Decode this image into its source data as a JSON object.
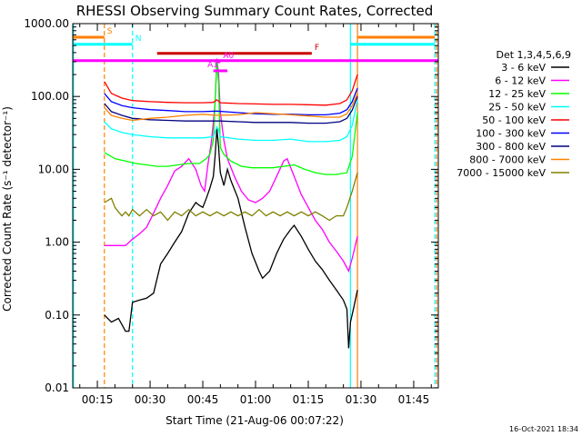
{
  "chart_data": {
    "type": "line",
    "title": "RHESSI Observing Summary Count Rates, Corrected",
    "xlabel": "Start Time (21-Aug-06 00:07:22)",
    "ylabel": "Corrected Count Rate (s⁻¹ detector⁻¹)",
    "footer": "16-Oct-2021 18:34",
    "y_scale": "log",
    "ylim": [
      0.01,
      1000
    ],
    "y_ticks": [
      "0.01",
      "0.10",
      "1.00",
      "10.00",
      "100.00",
      "1000.00"
    ],
    "xlim_minutes": [
      8,
      112
    ],
    "x_ticks": [
      "00:15",
      "00:30",
      "00:45",
      "01:00",
      "01:15",
      "01:30",
      "01:45"
    ],
    "legend_title": "Det 1,3,4,5,6,9",
    "series": [
      {
        "name": "3 - 6 keV",
        "color": "#000000",
        "points": [
          [
            17,
            0.1
          ],
          [
            19,
            0.08
          ],
          [
            21,
            0.09
          ],
          [
            23,
            0.06
          ],
          [
            24,
            0.06
          ],
          [
            25,
            0.15
          ],
          [
            27,
            0.16
          ],
          [
            29,
            0.17
          ],
          [
            31,
            0.2
          ],
          [
            33,
            0.5
          ],
          [
            35,
            0.7
          ],
          [
            37,
            1.0
          ],
          [
            39,
            1.4
          ],
          [
            41,
            2.5
          ],
          [
            43,
            3.5
          ],
          [
            44,
            3.2
          ],
          [
            45,
            3.0
          ],
          [
            46,
            4.0
          ],
          [
            47,
            5.5
          ],
          [
            48,
            8.0
          ],
          [
            48.5,
            15
          ],
          [
            49,
            36
          ],
          [
            49.5,
            20
          ],
          [
            50,
            9
          ],
          [
            51,
            6
          ],
          [
            52,
            10
          ],
          [
            53,
            7
          ],
          [
            55,
            4
          ],
          [
            57,
            1.6
          ],
          [
            59,
            0.7
          ],
          [
            61,
            0.4
          ],
          [
            62,
            0.32
          ],
          [
            64,
            0.4
          ],
          [
            66,
            0.7
          ],
          [
            68,
            1.1
          ],
          [
            70,
            1.5
          ],
          [
            71,
            1.7
          ],
          [
            73,
            1.2
          ],
          [
            75,
            0.8
          ],
          [
            77,
            0.55
          ],
          [
            79,
            0.42
          ],
          [
            81,
            0.3
          ],
          [
            83,
            0.22
          ],
          [
            85,
            0.16
          ],
          [
            86,
            0.12
          ],
          [
            86.5,
            0.035
          ],
          [
            87,
            0.08
          ],
          [
            88,
            0.13
          ],
          [
            89,
            0.22
          ]
        ]
      },
      {
        "name": "6 - 12 keV",
        "color": "#ff00ff",
        "points": [
          [
            17,
            0.9
          ],
          [
            20,
            0.9
          ],
          [
            23,
            0.9
          ],
          [
            25,
            1.1
          ],
          [
            27,
            1.3
          ],
          [
            29,
            1.6
          ],
          [
            31,
            2.5
          ],
          [
            33,
            4.0
          ],
          [
            35,
            6.0
          ],
          [
            37,
            9.5
          ],
          [
            39,
            11
          ],
          [
            41,
            14
          ],
          [
            43,
            10
          ],
          [
            44.5,
            6.0
          ],
          [
            45.5,
            5.0
          ],
          [
            46.5,
            12
          ],
          [
            47.5,
            25
          ],
          [
            48.5,
            80
          ],
          [
            49,
            330
          ],
          [
            49.5,
            200
          ],
          [
            50,
            60
          ],
          [
            51,
            25
          ],
          [
            52,
            14
          ],
          [
            54,
            8
          ],
          [
            56,
            5
          ],
          [
            58,
            3.8
          ],
          [
            60,
            3.5
          ],
          [
            62,
            4.0
          ],
          [
            64,
            5.0
          ],
          [
            66,
            8.0
          ],
          [
            68,
            13
          ],
          [
            69,
            14
          ],
          [
            71,
            8
          ],
          [
            73,
            4.5
          ],
          [
            75,
            3
          ],
          [
            77,
            2
          ],
          [
            79,
            1.5
          ],
          [
            81,
            1.0
          ],
          [
            83,
            0.75
          ],
          [
            85,
            0.55
          ],
          [
            86.5,
            0.4
          ],
          [
            87.5,
            0.6
          ],
          [
            89,
            1.2
          ]
        ]
      },
      {
        "name": "12 - 25 keV",
        "color": "#00ff00",
        "points": [
          [
            17,
            17
          ],
          [
            20,
            14
          ],
          [
            23,
            13
          ],
          [
            26,
            12
          ],
          [
            29,
            11.5
          ],
          [
            32,
            11
          ],
          [
            35,
            11
          ],
          [
            38,
            11.5
          ],
          [
            41,
            12
          ],
          [
            44,
            12
          ],
          [
            46,
            14
          ],
          [
            47,
            16
          ],
          [
            48,
            25
          ],
          [
            49,
            300
          ],
          [
            49.5,
            150
          ],
          [
            50,
            20
          ],
          [
            51,
            16
          ],
          [
            53,
            13
          ],
          [
            56,
            11
          ],
          [
            59,
            10.5
          ],
          [
            62,
            10.5
          ],
          [
            65,
            10.5
          ],
          [
            68,
            11
          ],
          [
            71,
            11.5
          ],
          [
            74,
            10
          ],
          [
            77,
            9
          ],
          [
            80,
            8.5
          ],
          [
            83,
            8.5
          ],
          [
            86,
            9
          ],
          [
            87.5,
            15
          ],
          [
            89,
            60
          ]
        ]
      },
      {
        "name": "25 - 50 keV",
        "color": "#00ffff",
        "points": [
          [
            17,
            45
          ],
          [
            19,
            36
          ],
          [
            22,
            32
          ],
          [
            25,
            30
          ],
          [
            30,
            28
          ],
          [
            35,
            27
          ],
          [
            40,
            27
          ],
          [
            45,
            27
          ],
          [
            48,
            28
          ],
          [
            49,
            38
          ],
          [
            49.5,
            35
          ],
          [
            50,
            28
          ],
          [
            55,
            26
          ],
          [
            60,
            25
          ],
          [
            65,
            25
          ],
          [
            70,
            26
          ],
          [
            75,
            24
          ],
          [
            80,
            24
          ],
          [
            84,
            25
          ],
          [
            86,
            28
          ],
          [
            87.5,
            40
          ],
          [
            89,
            90
          ]
        ]
      },
      {
        "name": "50 - 100 keV",
        "color": "#ff0000",
        "points": [
          [
            17,
            160
          ],
          [
            19,
            110
          ],
          [
            22,
            95
          ],
          [
            25,
            88
          ],
          [
            30,
            85
          ],
          [
            35,
            83
          ],
          [
            40,
            82
          ],
          [
            45,
            82
          ],
          [
            48,
            83
          ],
          [
            49,
            90
          ],
          [
            50,
            82
          ],
          [
            55,
            80
          ],
          [
            60,
            79
          ],
          [
            65,
            78
          ],
          [
            70,
            78
          ],
          [
            75,
            77
          ],
          [
            80,
            76
          ],
          [
            84,
            80
          ],
          [
            86,
            90
          ],
          [
            87.5,
            120
          ],
          [
            89,
            200
          ]
        ]
      },
      {
        "name": "100 - 300 keV",
        "color": "#0000ff",
        "points": [
          [
            17,
            110
          ],
          [
            19,
            85
          ],
          [
            22,
            75
          ],
          [
            25,
            70
          ],
          [
            30,
            66
          ],
          [
            35,
            64
          ],
          [
            40,
            62
          ],
          [
            45,
            62
          ],
          [
            49,
            63
          ],
          [
            55,
            60
          ],
          [
            60,
            58
          ],
          [
            65,
            57
          ],
          [
            70,
            57
          ],
          [
            75,
            56
          ],
          [
            80,
            56
          ],
          [
            84,
            59
          ],
          [
            86,
            66
          ],
          [
            87.5,
            85
          ],
          [
            89,
            130
          ]
        ]
      },
      {
        "name": "300 - 800 keV",
        "color": "#000080",
        "points": [
          [
            17,
            80
          ],
          [
            19,
            62
          ],
          [
            22,
            55
          ],
          [
            25,
            50
          ],
          [
            30,
            48
          ],
          [
            35,
            47
          ],
          [
            40,
            46
          ],
          [
            45,
            46
          ],
          [
            50,
            46
          ],
          [
            55,
            45
          ],
          [
            60,
            44
          ],
          [
            65,
            44
          ],
          [
            70,
            44
          ],
          [
            75,
            43
          ],
          [
            80,
            43
          ],
          [
            84,
            45
          ],
          [
            86,
            50
          ],
          [
            87.5,
            65
          ],
          [
            89,
            100
          ]
        ]
      },
      {
        "name": "800 - 7000 keV",
        "color": "#ff8000",
        "points": [
          [
            17,
            70
          ],
          [
            19,
            55
          ],
          [
            22,
            50
          ],
          [
            25,
            47
          ],
          [
            30,
            50
          ],
          [
            35,
            52
          ],
          [
            40,
            55
          ],
          [
            45,
            57
          ],
          [
            49,
            55
          ],
          [
            55,
            56
          ],
          [
            60,
            60
          ],
          [
            65,
            58
          ],
          [
            70,
            56
          ],
          [
            75,
            54
          ],
          [
            80,
            52
          ],
          [
            84,
            52
          ],
          [
            86,
            58
          ],
          [
            87.5,
            75
          ],
          [
            89,
            110
          ]
        ]
      },
      {
        "name": "7000 - 15000 keV",
        "color": "#808000",
        "points": [
          [
            17,
            3.5
          ],
          [
            19,
            4.0
          ],
          [
            20,
            3.0
          ],
          [
            21,
            2.6
          ],
          [
            22,
            2.3
          ],
          [
            23,
            2.6
          ],
          [
            24,
            2.3
          ],
          [
            25,
            2.8
          ],
          [
            27,
            2.3
          ],
          [
            29,
            2.8
          ],
          [
            31,
            2.3
          ],
          [
            33,
            2.6
          ],
          [
            35,
            2.0
          ],
          [
            37,
            2.6
          ],
          [
            39,
            2.3
          ],
          [
            41,
            2.8
          ],
          [
            43,
            2.3
          ],
          [
            45,
            2.6
          ],
          [
            47,
            2.3
          ],
          [
            49,
            2.6
          ],
          [
            51,
            2.3
          ],
          [
            53,
            2.6
          ],
          [
            55,
            2.3
          ],
          [
            57,
            2.6
          ],
          [
            59,
            2.3
          ],
          [
            61,
            2.8
          ],
          [
            63,
            2.3
          ],
          [
            65,
            2.6
          ],
          [
            67,
            2.3
          ],
          [
            69,
            2.6
          ],
          [
            71,
            2.3
          ],
          [
            73,
            2.6
          ],
          [
            75,
            2.3
          ],
          [
            77,
            2.6
          ],
          [
            79,
            2.3
          ],
          [
            81,
            2.0
          ],
          [
            83,
            2.3
          ],
          [
            85,
            2.3
          ],
          [
            86,
            3.0
          ],
          [
            87.5,
            5.0
          ],
          [
            89,
            9.0
          ]
        ]
      }
    ],
    "flag_bars": [
      {
        "label": "S",
        "color": "#ff8000",
        "y": 650,
        "x_ranges": [
          [
            8,
            17
          ],
          [
            89,
            111
          ]
        ]
      },
      {
        "label": "N",
        "color": "#00ffff",
        "y": 520,
        "x_ranges": [
          [
            8,
            25
          ],
          [
            87,
            111
          ]
        ]
      },
      {
        "label": "F",
        "color": "#cc0000",
        "y": 390,
        "x_ranges": [
          [
            32,
            76
          ]
        ]
      },
      {
        "label": "",
        "color": "#ff00ff",
        "y": 310,
        "x_ranges": [
          [
            8,
            112
          ]
        ]
      },
      {
        "label": "A0",
        "color": "#ff00ff",
        "y": 300,
        "x_ranges": [
          [
            49,
            50
          ]
        ]
      },
      {
        "label": "A1",
        "color": "#ff00ff",
        "y": 225,
        "x_ranges": [
          [
            48,
            52
          ]
        ]
      }
    ],
    "vertical_markers": [
      {
        "x": 17,
        "color": "#ff8000",
        "style": "dashed"
      },
      {
        "x": 25,
        "color": "#00ffff",
        "style": "dashed"
      },
      {
        "x": 87,
        "color": "#00ffff",
        "style": "solid"
      },
      {
        "x": 89,
        "color": "#ff8000",
        "style": "solid"
      },
      {
        "x": 111,
        "color": "#00ffff",
        "style": "dashed"
      },
      {
        "x": 111.5,
        "color": "#ff8000",
        "style": "dashed"
      },
      {
        "x": 8.2,
        "color": "#00ffff",
        "style": "solid"
      }
    ]
  }
}
